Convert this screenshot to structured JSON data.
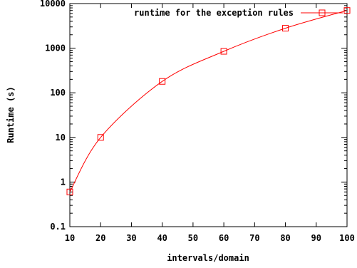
{
  "chart_data": {
    "type": "line",
    "title": "",
    "xlabel": "intervals/domain",
    "ylabel": "Runtime (s)",
    "x_scale": "linear",
    "y_scale": "log",
    "xlim": [
      10,
      100
    ],
    "ylim": [
      0.1,
      10000
    ],
    "x_ticks": [
      10,
      20,
      30,
      40,
      50,
      60,
      70,
      80,
      90,
      100
    ],
    "y_ticks": [
      0.1,
      1,
      10,
      100,
      1000,
      10000
    ],
    "y_tick_labels": [
      "0.1",
      "1",
      "10",
      "100",
      "1000",
      "10000"
    ],
    "grid": false,
    "legend_position": "top-right",
    "series": [
      {
        "name": "runtime for the exception rules",
        "color": "#ff0000",
        "marker": "square",
        "x": [
          10,
          20,
          40,
          60,
          80,
          100
        ],
        "y": [
          0.6,
          10,
          180,
          850,
          2800,
          7000
        ]
      }
    ]
  }
}
